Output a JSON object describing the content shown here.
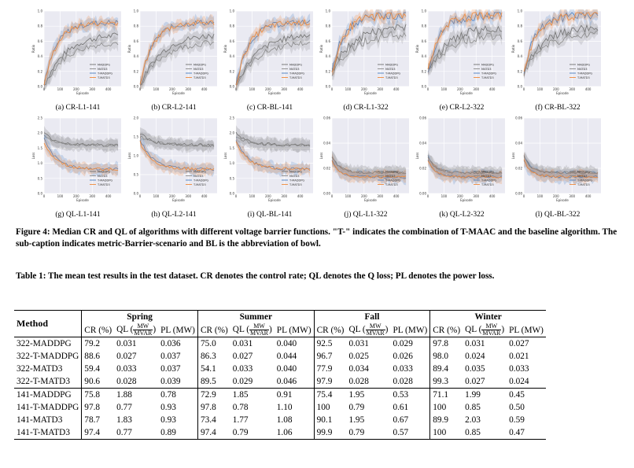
{
  "figure": {
    "panels": [
      {
        "id": "a",
        "caption": "(a) CR-L1-141",
        "yticks": [
          "0.0",
          "0.2",
          "0.4",
          "0.6",
          "0.8",
          "1.0"
        ],
        "ylabel": "Ratio"
      },
      {
        "id": "b",
        "caption": "(b) CR-L2-141",
        "yticks": [
          "0.0",
          "0.2",
          "0.4",
          "0.6",
          "0.8",
          "1.0"
        ],
        "ylabel": "Ratio"
      },
      {
        "id": "c",
        "caption": "(c) CR-BL-141",
        "yticks": [
          "0.0",
          "0.2",
          "0.4",
          "0.6",
          "0.8",
          "1.0"
        ],
        "ylabel": "Ratio"
      },
      {
        "id": "d",
        "caption": "(d) CR-L1-322",
        "yticks": [
          "0.0",
          "0.2",
          "0.4",
          "0.6",
          "0.8",
          "1.0"
        ],
        "ylabel": "Ratio"
      },
      {
        "id": "e",
        "caption": "(e) CR-L2-322",
        "yticks": [
          "0.0",
          "0.2",
          "0.4",
          "0.6",
          "0.8",
          "1.0"
        ],
        "ylabel": "Ratio"
      },
      {
        "id": "f",
        "caption": "(f) CR-BL-322",
        "yticks": [
          "0.0",
          "0.2",
          "0.4",
          "0.6",
          "0.8",
          "1.0"
        ],
        "ylabel": "Ratio"
      },
      {
        "id": "g",
        "caption": "(g) QL-L1-141",
        "yticks": [
          "0.0",
          "0.5",
          "1.0",
          "1.5",
          "2.0",
          "2.5"
        ],
        "ylabel": "Loss"
      },
      {
        "id": "h",
        "caption": "(h) QL-L2-141",
        "yticks": [
          "0.0",
          "0.5",
          "1.0",
          "1.5",
          "2.0"
        ],
        "ylabel": "Loss"
      },
      {
        "id": "i",
        "caption": "(i) QL-BL-141",
        "yticks": [
          "0.0",
          "0.5",
          "1.0",
          "1.5",
          "2.0",
          "2.5"
        ],
        "ylabel": "Loss"
      },
      {
        "id": "j",
        "caption": "(j) QL-L1-322",
        "yticks": [
          "0.00",
          "0.02",
          "0.04",
          "0.06"
        ],
        "ylabel": "Loss"
      },
      {
        "id": "k",
        "caption": "(k) QL-L2-322",
        "yticks": [
          "0.00",
          "0.02",
          "0.04",
          "0.06"
        ],
        "ylabel": "Loss"
      },
      {
        "id": "l",
        "caption": "(l) QL-BL-322",
        "yticks": [
          "0.00",
          "0.02",
          "0.04",
          "0.06"
        ],
        "ylabel": "Loss"
      }
    ],
    "xticks": [
      "0",
      "100",
      "200",
      "300",
      "400"
    ],
    "xlabel": "Episode",
    "legend": [
      "MADDPG",
      "MATD3",
      "T-MADDPG",
      "T-MATD3"
    ],
    "colors": {
      "MADDPG": "#6f6f6f",
      "MATD3": "#8a8a8a",
      "T-MADDPG": "#4a7fc1",
      "T-MATD3": "#f08a3a"
    },
    "caption": "Figure 4: Median CR and QL of algorithms with different voltage barrier functions. \"T-\" indicates the combination of T-MAAC and the baseline algorithm. The sub-caption indicates metric-Barrier-scenario and BL is the abbreviation of bowl."
  },
  "table": {
    "caption": "Table 1: The mean test results in the test dataset. CR denotes the control rate; QL denotes the Q loss; PL denotes the power loss.",
    "method_header": "Method",
    "seasons": [
      "Spring",
      "Summer",
      "Fall",
      "Winter"
    ],
    "col_cr": "CR (%)",
    "col_ql_prefix": "QL (",
    "col_ql_num": "MW",
    "col_ql_den": "MVAR",
    "col_ql_suffix": ")",
    "col_pl": "PL (MW)",
    "group1": [
      {
        "method": "322-MADDPG",
        "vals": [
          "79.2",
          "0.031",
          "0.036",
          "75.0",
          "0.031",
          "0.040",
          "92.5",
          "0.031",
          "0.029",
          "97.8",
          "0.031",
          "0.027"
        ]
      },
      {
        "method": "322-T-MADDPG",
        "vals": [
          "88.6",
          "0.027",
          "0.037",
          "86.3",
          "0.027",
          "0.044",
          "96.7",
          "0.025",
          "0.026",
          "98.0",
          "0.024",
          "0.021"
        ]
      },
      {
        "method": "322-MATD3",
        "vals": [
          "59.4",
          "0.033",
          "0.037",
          "54.1",
          "0.033",
          "0.040",
          "77.9",
          "0.034",
          "0.033",
          "89.4",
          "0.035",
          "0.033"
        ]
      },
      {
        "method": "322-T-MATD3",
        "vals": [
          "90.6",
          "0.028",
          "0.039",
          "89.5",
          "0.029",
          "0.046",
          "97.9",
          "0.028",
          "0.028",
          "99.3",
          "0.027",
          "0.024"
        ]
      }
    ],
    "group2": [
      {
        "method": "141-MADDPG",
        "vals": [
          "75.8",
          "1.88",
          "0.78",
          "72.9",
          "1.85",
          "0.91",
          "75.4",
          "1.95",
          "0.53",
          "71.1",
          "1.99",
          "0.45"
        ]
      },
      {
        "method": "141-T-MADDPG",
        "vals": [
          "97.8",
          "0.77",
          "0.93",
          "97.8",
          "0.78",
          "1.10",
          "100",
          "0.79",
          "0.61",
          "100",
          "0.85",
          "0.50"
        ]
      },
      {
        "method": "141-MATD3",
        "vals": [
          "78.7",
          "1.83",
          "0.93",
          "73.4",
          "1.77",
          "1.08",
          "90.1",
          "1.95",
          "0.67",
          "89.9",
          "2.03",
          "0.59"
        ]
      },
      {
        "method": "141-T-MATD3",
        "vals": [
          "97.4",
          "0.77",
          "0.89",
          "97.4",
          "0.79",
          "1.06",
          "99.9",
          "0.79",
          "0.57",
          "100",
          "0.85",
          "0.47"
        ]
      }
    ]
  }
}
